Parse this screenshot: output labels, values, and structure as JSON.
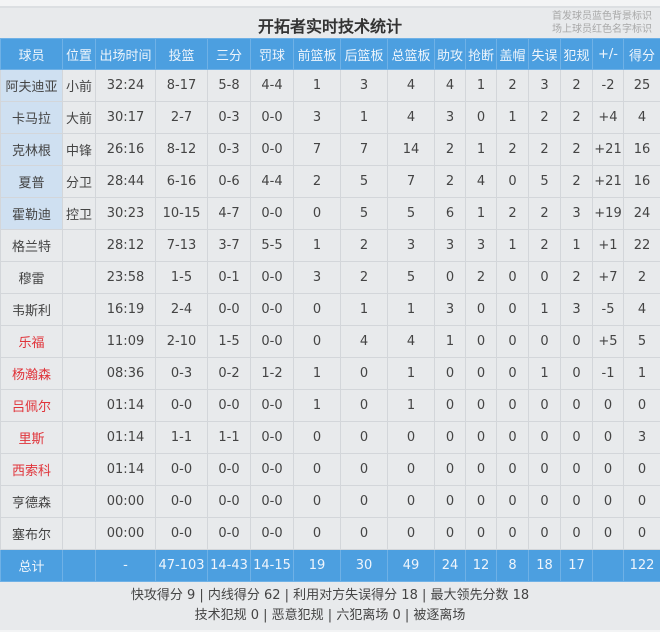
{
  "title": "开拓者实时技术统计",
  "legend": [
    "首发球员蓝色背景标识",
    "场上球员红色名字标识"
  ],
  "colors": {
    "header": "#4c9fe0",
    "starter_bg": "#cfe0f1",
    "oncourt_name": "#e0343a"
  },
  "columns": [
    "球员",
    "位置",
    "出场时间",
    "投篮",
    "三分",
    "罚球",
    "前篮板",
    "后篮板",
    "总篮板",
    "助攻",
    "抢断",
    "盖帽",
    "失误",
    "犯规",
    "+/-",
    "得分"
  ],
  "players": [
    {
      "starter": true,
      "oncourt": false,
      "cells": [
        "阿夫迪亚",
        "小前",
        "32:24",
        "8-17",
        "5-8",
        "4-4",
        "1",
        "3",
        "4",
        "4",
        "1",
        "2",
        "3",
        "2",
        "-2",
        "25"
      ]
    },
    {
      "starter": true,
      "oncourt": false,
      "cells": [
        "卡马拉",
        "大前",
        "30:17",
        "2-7",
        "0-3",
        "0-0",
        "3",
        "1",
        "4",
        "3",
        "0",
        "1",
        "2",
        "2",
        "+4",
        "4"
      ]
    },
    {
      "starter": true,
      "oncourt": false,
      "cells": [
        "克林根",
        "中锋",
        "26:16",
        "8-12",
        "0-3",
        "0-0",
        "7",
        "7",
        "14",
        "2",
        "1",
        "2",
        "2",
        "2",
        "+21",
        "16"
      ]
    },
    {
      "starter": true,
      "oncourt": false,
      "cells": [
        "夏普",
        "分卫",
        "28:44",
        "6-16",
        "0-6",
        "4-4",
        "2",
        "5",
        "7",
        "2",
        "4",
        "0",
        "5",
        "2",
        "+21",
        "16"
      ]
    },
    {
      "starter": true,
      "oncourt": false,
      "cells": [
        "霍勒迪",
        "控卫",
        "30:23",
        "10-15",
        "4-7",
        "0-0",
        "0",
        "5",
        "5",
        "6",
        "1",
        "2",
        "2",
        "3",
        "+19",
        "24"
      ]
    },
    {
      "starter": false,
      "oncourt": false,
      "cells": [
        "格兰特",
        "",
        "28:12",
        "7-13",
        "3-7",
        "5-5",
        "1",
        "2",
        "3",
        "3",
        "3",
        "1",
        "2",
        "1",
        "+1",
        "22"
      ]
    },
    {
      "starter": false,
      "oncourt": false,
      "cells": [
        "穆雷",
        "",
        "23:58",
        "1-5",
        "0-1",
        "0-0",
        "3",
        "2",
        "5",
        "0",
        "2",
        "0",
        "0",
        "2",
        "+7",
        "2"
      ]
    },
    {
      "starter": false,
      "oncourt": false,
      "cells": [
        "韦斯利",
        "",
        "16:19",
        "2-4",
        "0-0",
        "0-0",
        "0",
        "1",
        "1",
        "3",
        "0",
        "0",
        "1",
        "3",
        "-5",
        "4"
      ]
    },
    {
      "starter": false,
      "oncourt": true,
      "cells": [
        "乐福",
        "",
        "11:09",
        "2-10",
        "1-5",
        "0-0",
        "0",
        "4",
        "4",
        "1",
        "0",
        "0",
        "0",
        "0",
        "+5",
        "5"
      ]
    },
    {
      "starter": false,
      "oncourt": true,
      "cells": [
        "杨瀚森",
        "",
        "08:36",
        "0-3",
        "0-2",
        "1-2",
        "1",
        "0",
        "1",
        "0",
        "0",
        "0",
        "1",
        "0",
        "-1",
        "1"
      ]
    },
    {
      "starter": false,
      "oncourt": true,
      "cells": [
        "吕佩尔",
        "",
        "01:14",
        "0-0",
        "0-0",
        "0-0",
        "1",
        "0",
        "1",
        "0",
        "0",
        "0",
        "0",
        "0",
        "0",
        "0"
      ]
    },
    {
      "starter": false,
      "oncourt": true,
      "cells": [
        "里斯",
        "",
        "01:14",
        "1-1",
        "1-1",
        "0-0",
        "0",
        "0",
        "0",
        "0",
        "0",
        "0",
        "0",
        "0",
        "0",
        "3"
      ]
    },
    {
      "starter": false,
      "oncourt": true,
      "cells": [
        "西索科",
        "",
        "01:14",
        "0-0",
        "0-0",
        "0-0",
        "0",
        "0",
        "0",
        "0",
        "0",
        "0",
        "0",
        "0",
        "0",
        "0"
      ]
    },
    {
      "starter": false,
      "oncourt": false,
      "cells": [
        "亨德森",
        "",
        "00:00",
        "0-0",
        "0-0",
        "0-0",
        "0",
        "0",
        "0",
        "0",
        "0",
        "0",
        "0",
        "0",
        "0",
        "0"
      ]
    },
    {
      "starter": false,
      "oncourt": false,
      "cells": [
        "塞布尔",
        "",
        "00:00",
        "0-0",
        "0-0",
        "0-0",
        "0",
        "0",
        "0",
        "0",
        "0",
        "0",
        "0",
        "0",
        "0",
        "0"
      ]
    }
  ],
  "totals": [
    "总计",
    "",
    "-",
    "47-103",
    "14-43",
    "14-15",
    "19",
    "30",
    "49",
    "24",
    "12",
    "8",
    "18",
    "17",
    "",
    "122"
  ],
  "footer": [
    "快攻得分 9 | 内线得分 62 | 利用对方失误得分 18 | 最大领先分数 18",
    "技术犯规 0 | 恶意犯规  | 六犯离场 0 | 被逐离场"
  ]
}
